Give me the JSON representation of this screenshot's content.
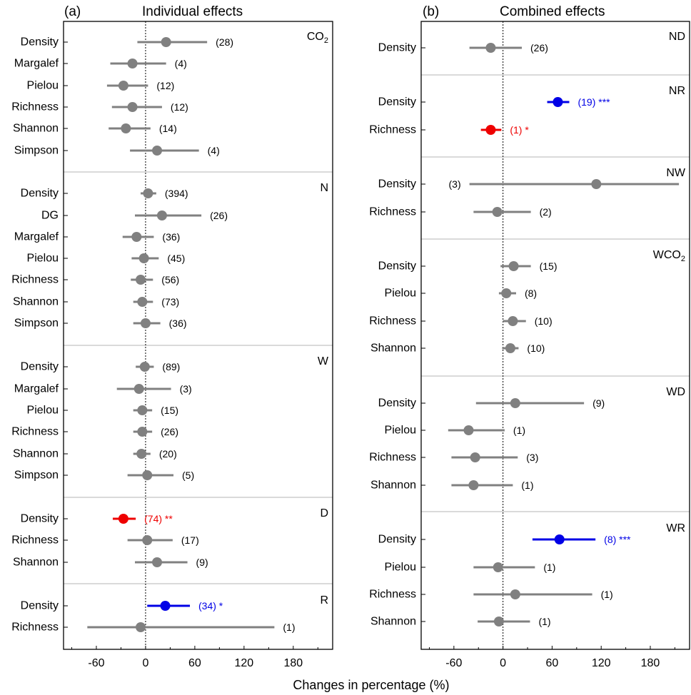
{
  "colors": {
    "neutral": "#808080",
    "positive": "#0000e6",
    "negative": "#ee0000",
    "text": "#000000"
  },
  "chart_data": [
    {
      "type": "forest",
      "panel_tag": "(a)",
      "title": "Individual effects",
      "xlabel": "Changes in percentage (%)",
      "xlim": [
        -100,
        228
      ],
      "xticks": [
        -60,
        0,
        60,
        120,
        180
      ],
      "reference_line": 0,
      "sections": [
        {
          "label": "CO",
          "label_sub": "2",
          "rows": [
            {
              "metric": "Density",
              "mean": 25,
              "low": -10,
              "high": 75,
              "n": "(28)",
              "sig": "",
              "color": "neutral"
            },
            {
              "metric": "Margalef",
              "mean": -16,
              "low": -43,
              "high": 25,
              "n": "(4)",
              "sig": "",
              "color": "neutral"
            },
            {
              "metric": "Pielou",
              "mean": -27,
              "low": -47,
              "high": 3,
              "n": "(12)",
              "sig": "",
              "color": "neutral"
            },
            {
              "metric": "Richness",
              "mean": -16,
              "low": -41,
              "high": 20,
              "n": "(12)",
              "sig": "",
              "color": "neutral"
            },
            {
              "metric": "Shannon",
              "mean": -24,
              "low": -45,
              "high": 6,
              "n": "(14)",
              "sig": "",
              "color": "neutral"
            },
            {
              "metric": "Simpson",
              "mean": 14,
              "low": -19,
              "high": 65,
              "n": "(4)",
              "sig": "",
              "color": "neutral"
            }
          ]
        },
        {
          "label": "N",
          "label_sub": "",
          "rows": [
            {
              "metric": "Density",
              "mean": 3,
              "low": -6,
              "high": 13,
              "n": "(394)",
              "sig": "",
              "color": "neutral"
            },
            {
              "metric": "DG",
              "mean": 20,
              "low": -13,
              "high": 68,
              "n": "(26)",
              "sig": "",
              "color": "neutral"
            },
            {
              "metric": "Margalef",
              "mean": -11,
              "low": -28,
              "high": 10,
              "n": "(36)",
              "sig": "",
              "color": "neutral"
            },
            {
              "metric": "Pielou",
              "mean": -2,
              "low": -17,
              "high": 16,
              "n": "(45)",
              "sig": "",
              "color": "neutral"
            },
            {
              "metric": "Richness",
              "mean": -6,
              "low": -18,
              "high": 9,
              "n": "(56)",
              "sig": "",
              "color": "neutral"
            },
            {
              "metric": "Shannon",
              "mean": -4,
              "low": -15,
              "high": 9,
              "n": "(73)",
              "sig": "",
              "color": "neutral"
            },
            {
              "metric": "Simpson",
              "mean": 0,
              "low": -15,
              "high": 18,
              "n": "(36)",
              "sig": "",
              "color": "neutral"
            }
          ]
        },
        {
          "label": "W",
          "label_sub": "",
          "rows": [
            {
              "metric": "Density",
              "mean": -1,
              "low": -12,
              "high": 10,
              "n": "(89)",
              "sig": "",
              "color": "neutral"
            },
            {
              "metric": "Margalef",
              "mean": -8,
              "low": -35,
              "high": 31,
              "n": "(3)",
              "sig": "",
              "color": "neutral"
            },
            {
              "metric": "Pielou",
              "mean": -4,
              "low": -15,
              "high": 8,
              "n": "(15)",
              "sig": "",
              "color": "neutral"
            },
            {
              "metric": "Richness",
              "mean": -4,
              "low": -15,
              "high": 8,
              "n": "(26)",
              "sig": "",
              "color": "neutral"
            },
            {
              "metric": "Shannon",
              "mean": -5,
              "low": -15,
              "high": 6,
              "n": "(20)",
              "sig": "",
              "color": "neutral"
            },
            {
              "metric": "Simpson",
              "mean": 2,
              "low": -22,
              "high": 34,
              "n": "(5)",
              "sig": "",
              "color": "neutral"
            }
          ]
        },
        {
          "label": "D",
          "label_sub": "",
          "rows": [
            {
              "metric": "Density",
              "mean": -27,
              "low": -40,
              "high": -12,
              "n": "(74)",
              "sig": "**",
              "color": "negative"
            },
            {
              "metric": "Richness",
              "mean": 2,
              "low": -22,
              "high": 33,
              "n": "(17)",
              "sig": "",
              "color": "neutral"
            },
            {
              "metric": "Shannon",
              "mean": 14,
              "low": -13,
              "high": 51,
              "n": "(9)",
              "sig": "",
              "color": "neutral"
            }
          ]
        },
        {
          "label": "R",
          "label_sub": "",
          "rows": [
            {
              "metric": "Density",
              "mean": 24,
              "low": 2,
              "high": 54,
              "n": "(34)",
              "sig": "*",
              "color": "positive"
            },
            {
              "metric": "Richness",
              "mean": -6,
              "low": -71,
              "high": 157,
              "n": "(1)",
              "sig": "",
              "color": "neutral"
            }
          ]
        }
      ]
    },
    {
      "type": "forest",
      "panel_tag": "(b)",
      "title": "Combined effects",
      "xlabel": "Changes in percentage (%)",
      "xlim": [
        -100,
        228
      ],
      "xticks": [
        -60,
        0,
        60,
        120,
        180
      ],
      "reference_line": 0,
      "sections": [
        {
          "label": "ND",
          "label_sub": "",
          "rows": [
            {
              "metric": "Density",
              "mean": -15,
              "low": -41,
              "high": 23,
              "n": "(26)",
              "sig": "",
              "color": "neutral"
            }
          ]
        },
        {
          "label": "NR",
          "label_sub": "",
          "rows": [
            {
              "metric": "Density",
              "mean": 67,
              "low": 54,
              "high": 81,
              "n": "(19)",
              "sig": "***",
              "color": "positive"
            },
            {
              "metric": "Richness",
              "mean": -15,
              "low": -27,
              "high": -2,
              "n": "(1)",
              "sig": "*",
              "color": "negative"
            }
          ]
        },
        {
          "label": "NW",
          "label_sub": "",
          "rows": [
            {
              "metric": "Density",
              "mean": 114,
              "low": -41,
              "high": 215,
              "n": "(3)",
              "sig": "",
              "color": "neutral",
              "n_position": "left"
            },
            {
              "metric": "Richness",
              "mean": -7,
              "low": -36,
              "high": 34,
              "n": "(2)",
              "sig": "",
              "color": "neutral"
            }
          ]
        },
        {
          "label": "WCO",
          "label_sub": "2",
          "rows": [
            {
              "metric": "Density",
              "mean": 13,
              "low": -3,
              "high": 34,
              "n": "(15)",
              "sig": "",
              "color": "neutral"
            },
            {
              "metric": "Pielou",
              "mean": 4,
              "low": -5,
              "high": 16,
              "n": "(8)",
              "sig": "",
              "color": "neutral"
            },
            {
              "metric": "Richness",
              "mean": 12,
              "low": 0,
              "high": 28,
              "n": "(10)",
              "sig": "",
              "color": "neutral"
            },
            {
              "metric": "Shannon",
              "mean": 9,
              "low": -1,
              "high": 19,
              "n": "(10)",
              "sig": "",
              "color": "neutral"
            }
          ]
        },
        {
          "label": "WD",
          "label_sub": "",
          "rows": [
            {
              "metric": "Density",
              "mean": 15,
              "low": -33,
              "high": 99,
              "n": "(9)",
              "sig": "",
              "color": "neutral"
            },
            {
              "metric": "Pielou",
              "mean": -42,
              "low": -67,
              "high": 2,
              "n": "(1)",
              "sig": "",
              "color": "neutral"
            },
            {
              "metric": "Richness",
              "mean": -34,
              "low": -63,
              "high": 18,
              "n": "(3)",
              "sig": "",
              "color": "neutral"
            },
            {
              "metric": "Shannon",
              "mean": -36,
              "low": -63,
              "high": 12,
              "n": "(1)",
              "sig": "",
              "color": "neutral"
            }
          ]
        },
        {
          "label": "WR",
          "label_sub": "",
          "rows": [
            {
              "metric": "Density",
              "mean": 69,
              "low": 36,
              "high": 113,
              "n": "(8)",
              "sig": "***",
              "color": "positive"
            },
            {
              "metric": "Pielou",
              "mean": -6,
              "low": -36,
              "high": 39,
              "n": "(1)",
              "sig": "",
              "color": "neutral"
            },
            {
              "metric": "Richness",
              "mean": 15,
              "low": -36,
              "high": 109,
              "n": "(1)",
              "sig": "",
              "color": "neutral"
            },
            {
              "metric": "Shannon",
              "mean": -5,
              "low": -31,
              "high": 33,
              "n": "(1)",
              "sig": "",
              "color": "neutral"
            }
          ]
        }
      ]
    }
  ],
  "shared_xlabel": "Changes in percentage (%)"
}
